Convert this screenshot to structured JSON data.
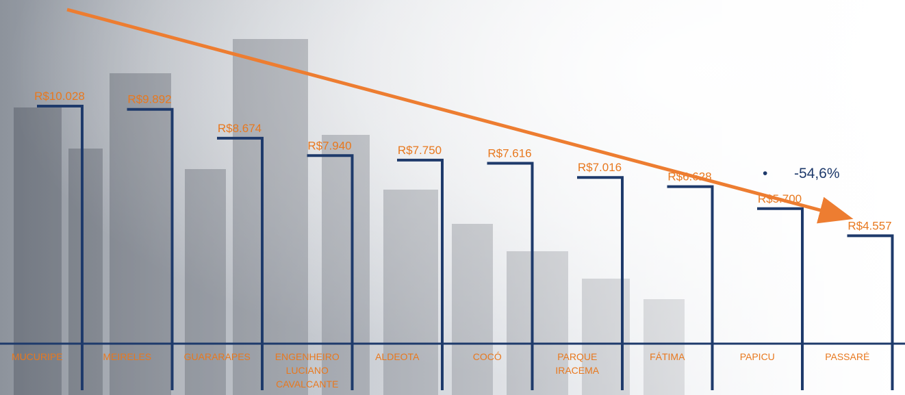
{
  "chart_data": {
    "type": "bar",
    "categories": [
      "MUCURIPE",
      "MEIRELES",
      "GUARARAPES",
      [
        "ENGENHEIRO",
        "LUCIANO",
        "CAVALCANTE"
      ],
      "ALDEOTA",
      "COCÓ",
      [
        "PARQUE",
        "IRACEMA"
      ],
      "FÁTIMA",
      "PAPICU",
      "PASSARÉ"
    ],
    "values": [
      10028,
      9892,
      8674,
      7940,
      7750,
      7616,
      7016,
      6628,
      5700,
      4557
    ],
    "value_labels": [
      "R$10.028",
      "R$9.892",
      "R$8.674",
      "R$7.940",
      "R$7.750",
      "R$7.616",
      "R$7.016",
      "R$6.628",
      "R$5.700",
      "R$4.557"
    ],
    "ylim": [
      0,
      10028
    ],
    "grid": false,
    "annotation": {
      "bullet": "•",
      "text": "-54,6%"
    },
    "trend_arrow": {
      "direction": "down",
      "color": "#ed7d31"
    },
    "colors": {
      "bars": "#1e3a6b",
      "labels": "#e8781e",
      "arrow": "#ed7d31",
      "annotation": "#1e3a6b"
    }
  }
}
